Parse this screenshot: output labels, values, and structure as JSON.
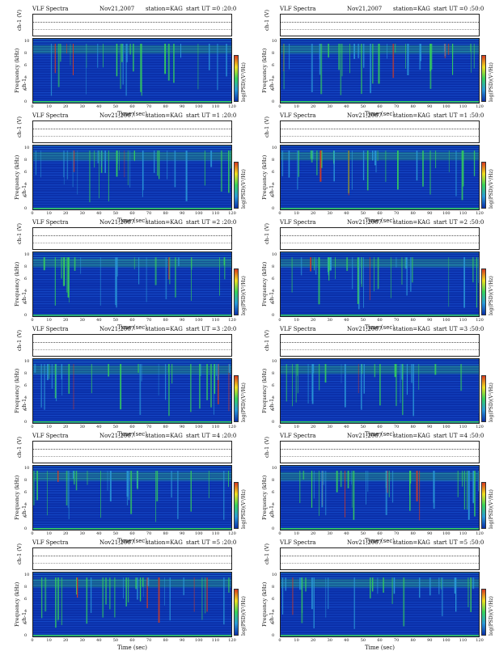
{
  "page_title": "VLF Spectra",
  "colors": {
    "background": "#0a2fa8",
    "noise_low": "#1c56d8",
    "noise_mid": "#2a9ad8",
    "burst": "#36d25a",
    "hot": "#d83a20"
  },
  "common": {
    "spectra_label": "VLF Spectra",
    "date": "Nov21,2007",
    "station": "station=KAG",
    "start_prefix": "start  UT",
    "ch_ylabel": "ch-1 (V)",
    "freq_ylabel": "Frequency (kHz)",
    "freq_sub": "ch-1",
    "x_label": "Time  (sec)",
    "colorbar_label": "log(PSD)(V²/Hz)",
    "x_ticks": [
      "0",
      "10",
      "20",
      "30",
      "40",
      "50",
      "60",
      "70",
      "80",
      "90",
      "100",
      "110",
      "120"
    ],
    "y_ticks": [
      "0",
      "2",
      "4",
      "6",
      "8",
      "10"
    ]
  },
  "chart_data": [
    {
      "type": "heatmap",
      "title": "VLF Spectra",
      "date": "Nov21,2007",
      "station": "station=KAG",
      "start": "=0 :20:0",
      "xlabel": "Time  (sec)",
      "ylabel": "Frequency (kHz)",
      "xlim": [
        0,
        120
      ],
      "ylim": [
        0,
        10
      ]
    },
    {
      "type": "heatmap",
      "title": "VLF Spectra",
      "date": "Nov21,2007",
      "station": "station=KAG",
      "start": "=0 :50:0",
      "xlabel": "Time  (sec)",
      "ylabel": "Frequency (kHz)",
      "xlim": [
        0,
        120
      ],
      "ylim": [
        0,
        10
      ]
    },
    {
      "type": "heatmap",
      "title": "VLF Spectra",
      "date": "Nov21,2007",
      "station": "station=KAG",
      "start": "=1 :20:0",
      "xlabel": "Time  (sec)",
      "ylabel": "Frequency (kHz)",
      "xlim": [
        0,
        120
      ],
      "ylim": [
        0,
        10
      ]
    },
    {
      "type": "heatmap",
      "title": "VLF Spectra",
      "date": "Nov21,2007",
      "station": "station=KAG",
      "start": "=1 :50:0",
      "xlabel": "Time  (sec)",
      "ylabel": "Frequency (kHz)",
      "xlim": [
        0,
        120
      ],
      "ylim": [
        0,
        10
      ]
    },
    {
      "type": "heatmap",
      "title": "VLF Spectra",
      "date": "Nov21,2007",
      "station": "station=KAG",
      "start": "=2 :20:0",
      "xlabel": "Time  (sec)",
      "ylabel": "Frequency (kHz)",
      "xlim": [
        0,
        120
      ],
      "ylim": [
        0,
        10
      ]
    },
    {
      "type": "heatmap",
      "title": "VLF Spectra",
      "date": "Nov21,2007",
      "station": "station=KAG",
      "start": "=2 :50:0",
      "xlabel": "Time  (sec)",
      "ylabel": "Frequency (kHz)",
      "xlim": [
        0,
        120
      ],
      "ylim": [
        0,
        10
      ]
    },
    {
      "type": "heatmap",
      "title": "VLF Spectra",
      "date": "Nov21,2007",
      "station": "station=KAG",
      "start": "=3 :20:0",
      "xlabel": "Time  (sec)",
      "ylabel": "Frequency (kHz)",
      "xlim": [
        0,
        120
      ],
      "ylim": [
        0,
        10
      ]
    },
    {
      "type": "heatmap",
      "title": "VLF Spectra",
      "date": "Nov21,2007",
      "station": "station=KAG",
      "start": "=3 :50:0",
      "xlabel": "Time  (sec)",
      "ylabel": "Frequency (kHz)",
      "xlim": [
        0,
        120
      ],
      "ylim": [
        0,
        10
      ]
    },
    {
      "type": "heatmap",
      "title": "VLF Spectra",
      "date": "Nov21,2007",
      "station": "station=KAG",
      "start": "=4 :20:0",
      "xlabel": "Time  (sec)",
      "ylabel": "Frequency (kHz)",
      "xlim": [
        0,
        120
      ],
      "ylim": [
        0,
        10
      ]
    },
    {
      "type": "heatmap",
      "title": "VLF Spectra",
      "date": "Nov21,2007",
      "station": "station=KAG",
      "start": "=4 :50:0",
      "xlabel": "Time  (sec)",
      "ylabel": "Frequency (kHz)",
      "xlim": [
        0,
        120
      ],
      "ylim": [
        0,
        10
      ]
    },
    {
      "type": "heatmap",
      "title": "VLF Spectra",
      "date": "Nov21,2007",
      "station": "station=KAG",
      "start": "=5 :20:0",
      "xlabel": "Time  (sec)",
      "ylabel": "Frequency (kHz)",
      "xlim": [
        0,
        120
      ],
      "ylim": [
        0,
        10
      ]
    },
    {
      "type": "heatmap",
      "title": "VLF Spectra",
      "date": "Nov21,2007",
      "station": "station=KAG",
      "start": "=5 :50:0",
      "xlabel": "Time  (sec)",
      "ylabel": "Frequency (kHz)",
      "xlim": [
        0,
        120
      ],
      "ylim": [
        0,
        10
      ]
    }
  ]
}
